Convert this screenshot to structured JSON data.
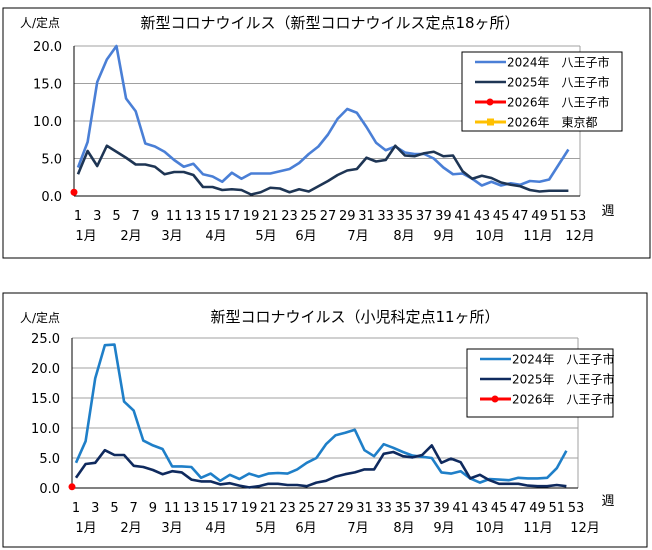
{
  "chart_data": [
    {
      "type": "line",
      "title": "新型コロナウイルス（新型コロナウイルス定点18ヶ所）",
      "ylabel": "人/定点",
      "xlabel": "週",
      "ylim": [
        0,
        20
      ],
      "yticks": [
        "0.0",
        "5.0",
        "10.0",
        "15.0",
        "20.0"
      ],
      "xticks": [
        "1",
        "3",
        "5",
        "7",
        "9",
        "11",
        "13",
        "15",
        "17",
        "19",
        "21",
        "23",
        "25",
        "27",
        "29",
        "31",
        "33",
        "35",
        "37",
        "39",
        "41",
        "43",
        "45",
        "47",
        "49",
        "51",
        "53"
      ],
      "months": [
        "1月",
        "2月",
        "3月",
        "4月",
        "5月",
        "6月",
        "7月",
        "8月",
        "9月",
        "10月",
        "11月",
        "12月"
      ],
      "grid": true,
      "legend": "top-right",
      "series": [
        {
          "name": "2024年　八王子市",
          "color": "#4a7fd6",
          "values": [
            3.8,
            7.2,
            15.2,
            18.2,
            20,
            13,
            11.3,
            7,
            6.6,
            5.9,
            4.8,
            3.9,
            4.3,
            2.9,
            2.6,
            1.9,
            3.1,
            2.3,
            3.0,
            3.0,
            3.0,
            3.3,
            3.6,
            4.4,
            5.6,
            6.6,
            8.2,
            10.3,
            11.6,
            11.1,
            9.2,
            7.1,
            6.1,
            6.6,
            5.8,
            5.6,
            5.6,
            5.0,
            3.8,
            2.9,
            3.0,
            2.3,
            1.4,
            1.9,
            1.4,
            1.7,
            1.5,
            2.0,
            1.9,
            2.2,
            4.2,
            6.2
          ]
        },
        {
          "name": "2025年　八王子市",
          "color": "#1e3554",
          "values": [
            2.9,
            6.0,
            4.0,
            6.7,
            5.9,
            5.1,
            4.2,
            4.2,
            3.9,
            2.9,
            3.2,
            3.2,
            2.8,
            1.2,
            1.2,
            0.8,
            0.9,
            0.8,
            0.2,
            0.5,
            1.1,
            1.0,
            0.5,
            0.9,
            0.6,
            1.3,
            2.0,
            2.8,
            3.4,
            3.6,
            5.1,
            4.6,
            4.8,
            6.7,
            5.4,
            5.3,
            5.7,
            5.9,
            5.3,
            5.4,
            3.3,
            2.3,
            2.7,
            2.4,
            1.8,
            1.5,
            1.3,
            0.8,
            0.6,
            0.7,
            0.7,
            0.7
          ]
        },
        {
          "name": "2026年　八王子市",
          "color": "#ff0000",
          "marker": "circle",
          "values": [
            0.5
          ]
        },
        {
          "name": "2026年　東京都",
          "color": "#ffc000",
          "marker": "square",
          "values": []
        }
      ]
    },
    {
      "type": "line",
      "title": "新型コロナウイルス（小児科定点11ヶ所）",
      "ylabel": "人/定点",
      "xlabel": "週",
      "ylim": [
        0,
        25
      ],
      "yticks": [
        "0.0",
        "5.0",
        "10.0",
        "15.0",
        "20.0",
        "25.0"
      ],
      "xticks": [
        "1",
        "3",
        "5",
        "7",
        "9",
        "11",
        "13",
        "15",
        "17",
        "19",
        "21",
        "23",
        "25",
        "27",
        "29",
        "31",
        "33",
        "35",
        "37",
        "39",
        "41",
        "43",
        "45",
        "47",
        "49",
        "51",
        "53"
      ],
      "months": [
        "1月",
        "2月",
        "3月",
        "4月",
        "5月",
        "6月",
        "7月",
        "8月",
        "9月",
        "10月",
        "11月",
        "12月"
      ],
      "grid": true,
      "legend": "top-right",
      "series": [
        {
          "name": "2024年　八王子市",
          "color": "#1f7fc8",
          "values": [
            4.2,
            7.8,
            18.3,
            23.8,
            23.9,
            14.4,
            12.9,
            7.9,
            7.1,
            6.5,
            3.6,
            3.6,
            3.5,
            1.7,
            2.4,
            1.2,
            2.2,
            1.5,
            2.4,
            1.9,
            2.4,
            2.5,
            2.4,
            3.1,
            4.2,
            5.0,
            7.3,
            8.8,
            9.2,
            9.7,
            6.3,
            5.3,
            7.3,
            6.7,
            6.0,
            5.4,
            5.2,
            5.0,
            2.6,
            2.4,
            2.8,
            1.6,
            0.9,
            1.5,
            1.4,
            1.3,
            1.7,
            1.6,
            1.6,
            1.7,
            3.3,
            6.2
          ]
        },
        {
          "name": "2025年　八王子市",
          "color": "#0f2a5e",
          "values": [
            1.7,
            4.0,
            4.2,
            6.3,
            5.5,
            5.5,
            3.7,
            3.5,
            3.0,
            2.3,
            2.8,
            2.6,
            1.4,
            1.1,
            1.1,
            0.6,
            0.8,
            0.4,
            0.1,
            0.3,
            0.7,
            0.7,
            0.5,
            0.5,
            0.3,
            0.9,
            1.2,
            1.9,
            2.3,
            2.6,
            3.1,
            3.1,
            5.7,
            6.0,
            5.3,
            5.1,
            5.5,
            7.1,
            4.2,
            4.9,
            4.3,
            1.6,
            2.2,
            1.3,
            0.7,
            0.7,
            0.7,
            0.4,
            0.3,
            0.3,
            0.5,
            0.3
          ]
        },
        {
          "name": "2026年　八王子市",
          "color": "#ff0000",
          "marker": "circle",
          "values": [
            0.2
          ]
        }
      ]
    }
  ]
}
